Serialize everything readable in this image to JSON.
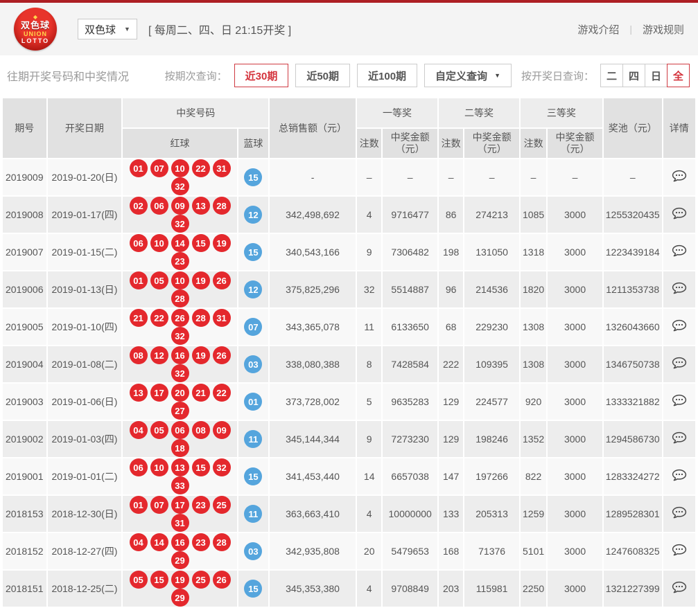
{
  "colors": {
    "topbar": "#ad1f24",
    "accent_red": "#d4333c",
    "ball_red": "#e4282d",
    "ball_blue": "#55a5dd"
  },
  "header": {
    "logo": {
      "cn": "双色球",
      "union": "UNION",
      "lotto": "LOTTO"
    },
    "game_select": {
      "value": "双色球",
      "caret": "▼"
    },
    "schedule": "[ 每周二、四、日 21:15开奖 ]",
    "links": [
      "游戏介绍",
      "游戏规则"
    ],
    "links_divider": "|"
  },
  "filter_bar": {
    "title": "往期开奖号码和中奖情况",
    "period_label": "按期次查询：",
    "period_options": [
      "近30期",
      "近50期",
      "近100期"
    ],
    "active_period": "近30期",
    "custom_query": "自定义查询",
    "custom_caret": "▼",
    "day_label": "按开奖日查询：",
    "day_options": [
      "二",
      "四",
      "日",
      "全"
    ],
    "active_day": "全"
  },
  "table": {
    "headers": {
      "period": "期号",
      "date": "开奖日期",
      "winning_numbers": "中奖号码",
      "red_balls": "红球",
      "blue_ball": "蓝球",
      "total_sales": "总销售额（元）",
      "prize1": "一等奖",
      "prize2": "二等奖",
      "prize3": "三等奖",
      "count": "注数",
      "amount": "中奖金额",
      "amount_unit": "（元）",
      "pool": "奖池（元）",
      "detail": "详情"
    },
    "rows": [
      {
        "period": "2019009",
        "date": "2019-01-20(日)",
        "red": [
          "01",
          "07",
          "10",
          "22",
          "31",
          "32"
        ],
        "blue": "15",
        "sales": "-",
        "p1_count": "–",
        "p1_amount": "–",
        "p2_count": "–",
        "p2_amount": "–",
        "p3_count": "–",
        "p3_amount": "–",
        "pool": "–"
      },
      {
        "period": "2019008",
        "date": "2019-01-17(四)",
        "red": [
          "02",
          "06",
          "09",
          "13",
          "28",
          "32"
        ],
        "blue": "12",
        "sales": "342,498,692",
        "p1_count": "4",
        "p1_amount": "9716477",
        "p2_count": "86",
        "p2_amount": "274213",
        "p3_count": "1085",
        "p3_amount": "3000",
        "pool": "1255320435"
      },
      {
        "period": "2019007",
        "date": "2019-01-15(二)",
        "red": [
          "06",
          "10",
          "14",
          "15",
          "19",
          "23"
        ],
        "blue": "15",
        "sales": "340,543,166",
        "p1_count": "9",
        "p1_amount": "7306482",
        "p2_count": "198",
        "p2_amount": "131050",
        "p3_count": "1318",
        "p3_amount": "3000",
        "pool": "1223439184"
      },
      {
        "period": "2019006",
        "date": "2019-01-13(日)",
        "red": [
          "01",
          "05",
          "10",
          "19",
          "26",
          "28"
        ],
        "blue": "12",
        "sales": "375,825,296",
        "p1_count": "32",
        "p1_amount": "5514887",
        "p2_count": "96",
        "p2_amount": "214536",
        "p3_count": "1820",
        "p3_amount": "3000",
        "pool": "1211353738"
      },
      {
        "period": "2019005",
        "date": "2019-01-10(四)",
        "red": [
          "21",
          "22",
          "26",
          "28",
          "31",
          "32"
        ],
        "blue": "07",
        "sales": "343,365,078",
        "p1_count": "11",
        "p1_amount": "6133650",
        "p2_count": "68",
        "p2_amount": "229230",
        "p3_count": "1308",
        "p3_amount": "3000",
        "pool": "1326043660"
      },
      {
        "period": "2019004",
        "date": "2019-01-08(二)",
        "red": [
          "08",
          "12",
          "16",
          "19",
          "26",
          "32"
        ],
        "blue": "03",
        "sales": "338,080,388",
        "p1_count": "8",
        "p1_amount": "7428584",
        "p2_count": "222",
        "p2_amount": "109395",
        "p3_count": "1308",
        "p3_amount": "3000",
        "pool": "1346750738"
      },
      {
        "period": "2019003",
        "date": "2019-01-06(日)",
        "red": [
          "13",
          "17",
          "20",
          "21",
          "22",
          "27"
        ],
        "blue": "01",
        "sales": "373,728,002",
        "p1_count": "5",
        "p1_amount": "9635283",
        "p2_count": "129",
        "p2_amount": "224577",
        "p3_count": "920",
        "p3_amount": "3000",
        "pool": "1333321882"
      },
      {
        "period": "2019002",
        "date": "2019-01-03(四)",
        "red": [
          "04",
          "05",
          "06",
          "08",
          "09",
          "18"
        ],
        "blue": "11",
        "sales": "345,144,344",
        "p1_count": "9",
        "p1_amount": "7273230",
        "p2_count": "129",
        "p2_amount": "198246",
        "p3_count": "1352",
        "p3_amount": "3000",
        "pool": "1294586730"
      },
      {
        "period": "2019001",
        "date": "2019-01-01(二)",
        "red": [
          "06",
          "10",
          "13",
          "15",
          "32",
          "33"
        ],
        "blue": "15",
        "sales": "341,453,440",
        "p1_count": "14",
        "p1_amount": "6657038",
        "p2_count": "147",
        "p2_amount": "197266",
        "p3_count": "822",
        "p3_amount": "3000",
        "pool": "1283324272"
      },
      {
        "period": "2018153",
        "date": "2018-12-30(日)",
        "red": [
          "01",
          "07",
          "17",
          "23",
          "25",
          "31"
        ],
        "blue": "11",
        "sales": "363,663,410",
        "p1_count": "4",
        "p1_amount": "10000000",
        "p2_count": "133",
        "p2_amount": "205313",
        "p3_count": "1259",
        "p3_amount": "3000",
        "pool": "1289528301"
      },
      {
        "period": "2018152",
        "date": "2018-12-27(四)",
        "red": [
          "04",
          "14",
          "16",
          "23",
          "28",
          "29"
        ],
        "blue": "03",
        "sales": "342,935,808",
        "p1_count": "20",
        "p1_amount": "5479653",
        "p2_count": "168",
        "p2_amount": "71376",
        "p3_count": "5101",
        "p3_amount": "3000",
        "pool": "1247608325"
      },
      {
        "period": "2018151",
        "date": "2018-12-25(二)",
        "red": [
          "05",
          "15",
          "19",
          "25",
          "26",
          "29"
        ],
        "blue": "15",
        "sales": "345,353,380",
        "p1_count": "4",
        "p1_amount": "9708849",
        "p2_count": "203",
        "p2_amount": "115981",
        "p3_count": "2250",
        "p3_amount": "3000",
        "pool": "1321227399"
      }
    ]
  }
}
